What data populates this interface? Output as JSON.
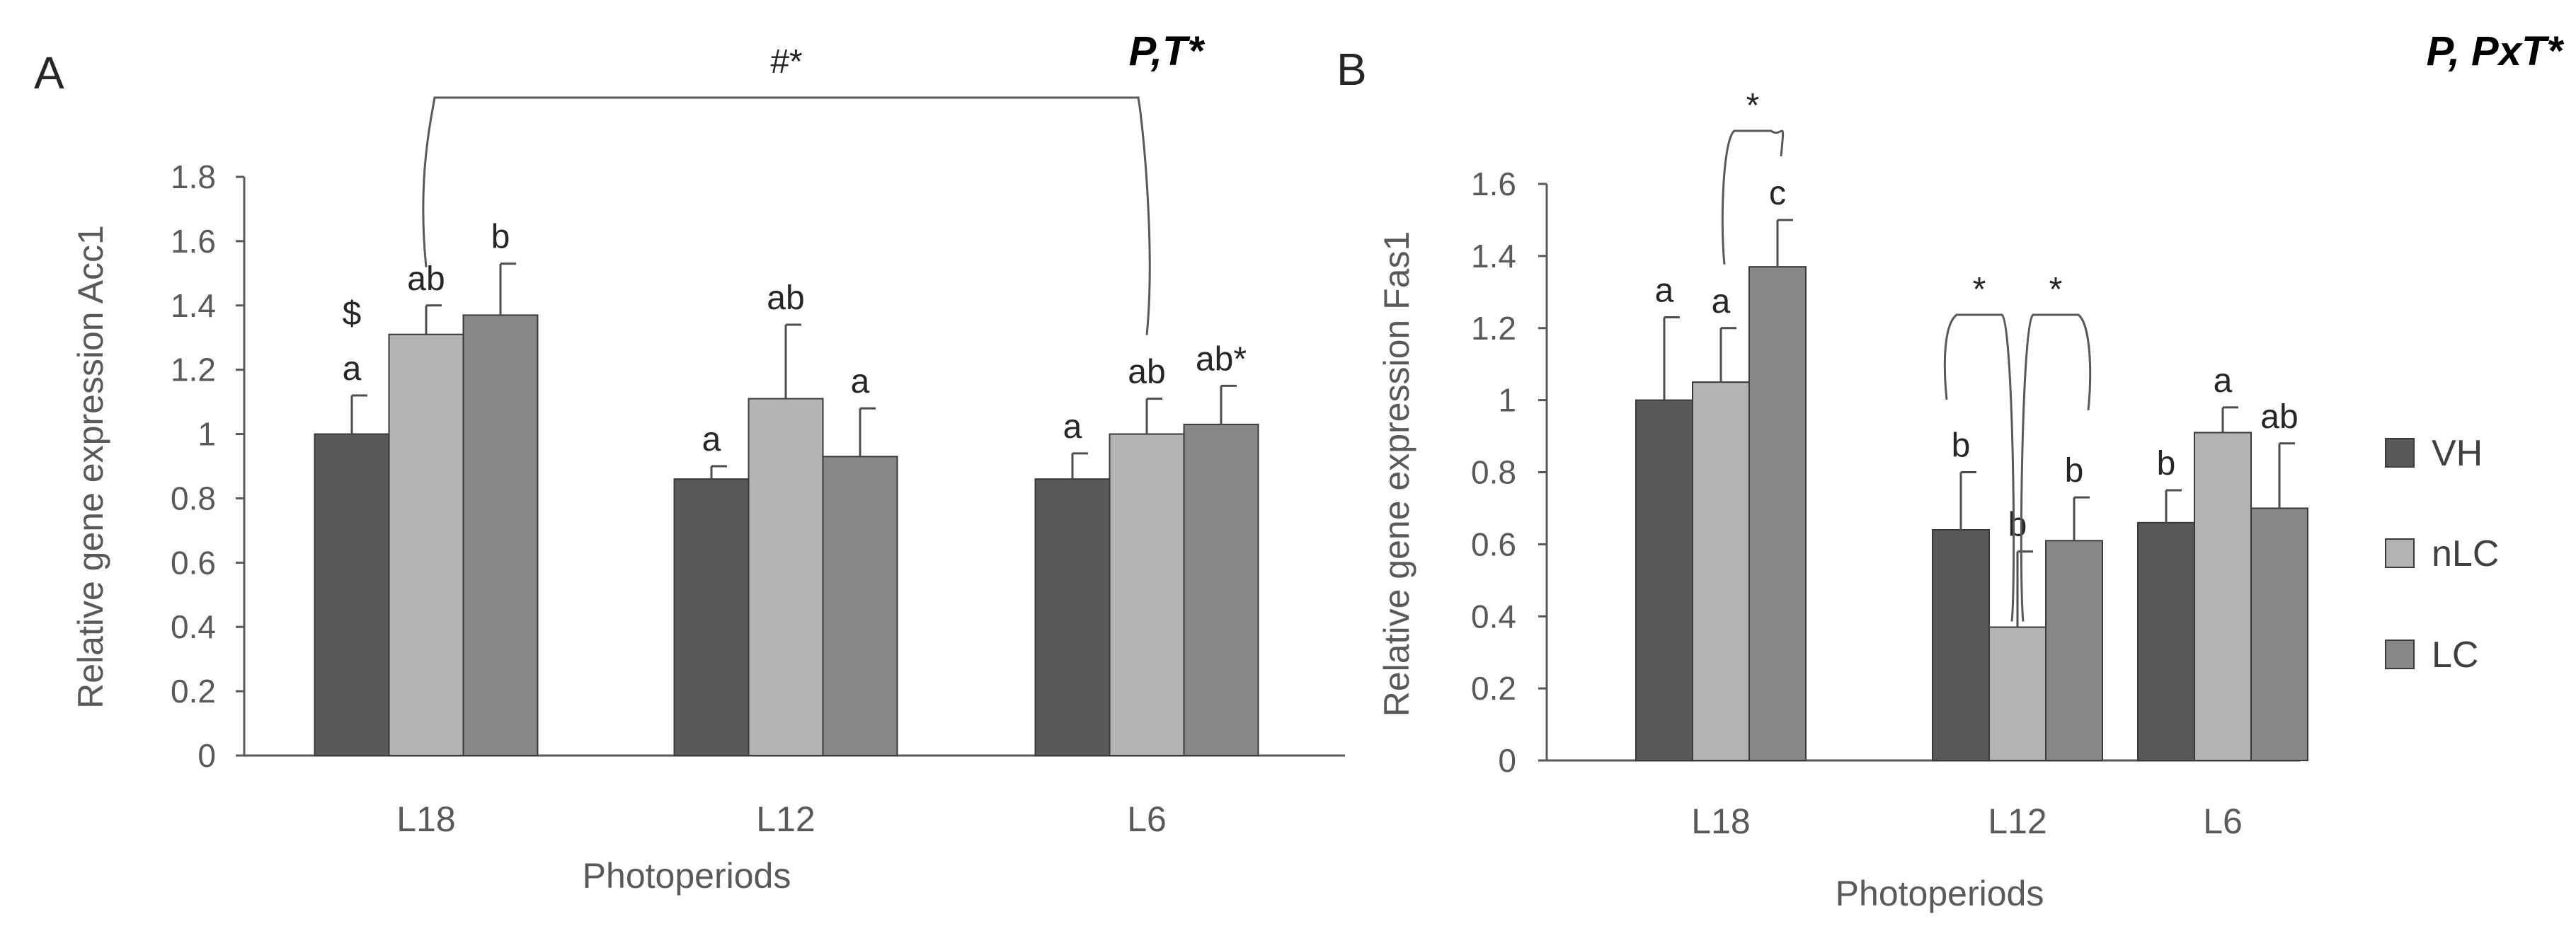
{
  "chart_data": [
    {
      "type": "bar",
      "panel_label": "A",
      "stat_label": "P,T*",
      "xlabel": "Photoperiods",
      "ylabel": "Relative gene expression Acc1",
      "ylim": [
        0,
        1.8
      ],
      "yticks": [
        "0",
        "0.2",
        "0.4",
        "0.6",
        "0.8",
        "1",
        "1.2",
        "1.4",
        "1.6",
        "1.8"
      ],
      "categories": [
        "L18",
        "L12",
        "L6"
      ],
      "series": [
        {
          "name": "VH",
          "color": "#595959",
          "values": [
            1.0,
            0.86,
            0.86
          ],
          "errors": [
            0.12,
            0.04,
            0.08
          ],
          "labels": [
            "a",
            "a",
            "a"
          ]
        },
        {
          "name": "nLC",
          "color": "#b3b3b3",
          "values": [
            1.31,
            1.11,
            1.0
          ],
          "errors": [
            0.09,
            0.23,
            0.11
          ],
          "labels": [
            "ab",
            "ab",
            "ab"
          ]
        },
        {
          "name": "LC",
          "color": "#878787",
          "values": [
            1.37,
            0.93,
            1.03
          ],
          "errors": [
            0.16,
            0.15,
            0.12
          ],
          "labels": [
            "b",
            "a",
            "ab*"
          ]
        }
      ],
      "extra_annotations": [
        {
          "text": "$",
          "category": "L18",
          "series": "VH"
        }
      ],
      "brackets": [
        {
          "text": "#*",
          "from": {
            "category": "L18",
            "series": "nLC"
          },
          "to": {
            "category": "L6",
            "series": "nLC"
          }
        }
      ]
    },
    {
      "type": "bar",
      "panel_label": "B",
      "stat_label": "P, PxT*",
      "xlabel": "Photoperiods",
      "ylabel": "Relative gene expression Fas1",
      "ylim": [
        0,
        1.6
      ],
      "yticks": [
        "0",
        "0.2",
        "0.4",
        "0.6",
        "0.8",
        "1",
        "1.2",
        "1.4",
        "1.6"
      ],
      "categories": [
        "L18",
        "L12",
        "L6"
      ],
      "series": [
        {
          "name": "VH",
          "color": "#595959",
          "values": [
            1.0,
            0.64,
            0.66
          ],
          "errors": [
            0.23,
            0.16,
            0.09
          ],
          "labels": [
            "a",
            "b",
            "b"
          ]
        },
        {
          "name": "nLC",
          "color": "#b3b3b3",
          "values": [
            1.05,
            0.37,
            0.91
          ],
          "errors": [
            0.15,
            0.21,
            0.07
          ],
          "labels": [
            "a",
            "b",
            "a"
          ]
        },
        {
          "name": "LC",
          "color": "#878787",
          "values": [
            1.37,
            0.61,
            0.7
          ],
          "errors": [
            0.13,
            0.12,
            0.18
          ],
          "labels": [
            "c",
            "b",
            "ab"
          ]
        }
      ],
      "brackets": [
        {
          "text": "*",
          "from": {
            "category": "L18",
            "series": "nLC"
          },
          "to": {
            "category": "L18",
            "series": "LC"
          }
        },
        {
          "text": "*",
          "from": {
            "category": "L12",
            "series": "VH"
          },
          "to": {
            "category": "L12",
            "series": "nLC"
          }
        },
        {
          "text": "*",
          "from": {
            "category": "L12",
            "series": "nLC"
          },
          "to": {
            "category": "L12",
            "series": "LC"
          }
        }
      ]
    }
  ],
  "legend": [
    {
      "name": "VH",
      "color": "#595959"
    },
    {
      "name": "nLC",
      "color": "#b3b3b3"
    },
    {
      "name": "LC",
      "color": "#878787"
    }
  ]
}
